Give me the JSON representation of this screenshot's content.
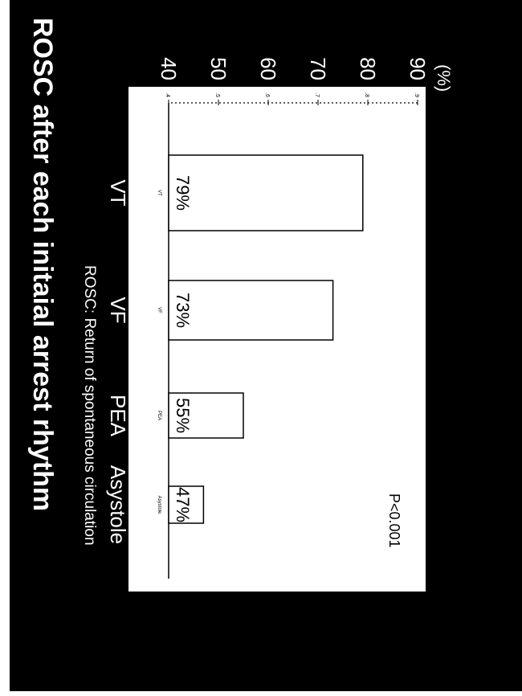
{
  "chart_data": {
    "type": "bar",
    "title": "ROSC after each initaial arrest rhythm",
    "caption": "ROSC: Return of spontaneous circulation",
    "ylabel": "(%)",
    "annotation": "P<0.001",
    "categories": [
      "VT",
      "VF",
      "PEA",
      "Asystole"
    ],
    "inner_category_labels": [
      "VT",
      "VF",
      "PEA",
      "Asystole"
    ],
    "values": [
      79,
      73,
      55,
      47
    ],
    "data_labels": [
      "79%",
      "73%",
      "55%",
      "47%"
    ],
    "ylim": [
      40,
      90
    ],
    "yticks": [
      40,
      50,
      60,
      70,
      80,
      90
    ],
    "ytick_labels": [
      "40",
      "50",
      "60",
      "70",
      "80",
      "90"
    ],
    "inner_ytick_labels": [
      ".4",
      ".5",
      ".6",
      ".7",
      ".8",
      ".9"
    ],
    "orientation": "rotated-90-clockwise",
    "grid": false
  },
  "colors": {
    "background": "#000000",
    "plot_area": "#ffffff",
    "text": "#ffffff"
  }
}
